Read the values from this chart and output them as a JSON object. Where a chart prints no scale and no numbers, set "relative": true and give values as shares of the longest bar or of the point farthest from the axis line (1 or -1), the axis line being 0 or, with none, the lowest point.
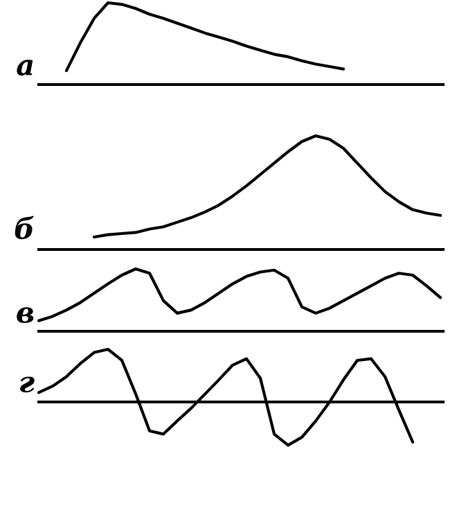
{
  "chart_data": [
    {
      "type": "line",
      "relative": true,
      "title": "а",
      "color": "#000000",
      "categories": [
        null,
        null,
        null,
        null,
        null,
        null,
        null,
        null,
        null,
        null,
        null,
        null,
        null,
        null,
        null,
        null,
        null,
        null,
        null,
        null,
        null
      ],
      "values": [
        0.17,
        0.51,
        0.81,
        1.0,
        0.98,
        0.93,
        0.86,
        0.81,
        0.75,
        0.69,
        0.63,
        0.58,
        0.53,
        0.47,
        0.42,
        0.37,
        0.34,
        0.29,
        0.25,
        0.22,
        0.19
      ]
    },
    {
      "type": "line",
      "relative": true,
      "title": "б",
      "color": "#000000",
      "categories": [
        null,
        null,
        null,
        null,
        null,
        null,
        null,
        null,
        null,
        null,
        null,
        null,
        null,
        null,
        null,
        null,
        null,
        null,
        null,
        null,
        null,
        null,
        null,
        null,
        null,
        null
      ],
      "values": [
        0.11,
        0.13,
        0.14,
        0.15,
        0.18,
        0.2,
        0.24,
        0.28,
        0.33,
        0.39,
        0.47,
        0.56,
        0.66,
        0.76,
        0.86,
        0.95,
        1.0,
        0.97,
        0.89,
        0.76,
        0.63,
        0.51,
        0.42,
        0.35,
        0.32,
        0.3
      ]
    },
    {
      "type": "line",
      "relative": true,
      "title": "в",
      "color": "#000000",
      "categories": [
        null,
        null,
        null,
        null,
        null,
        null,
        null,
        null,
        null,
        null,
        null,
        null,
        null,
        null,
        null,
        null,
        null,
        null,
        null,
        null,
        null,
        null,
        null,
        null,
        null,
        null,
        null,
        null,
        null,
        null
      ],
      "values": [
        0.17,
        0.24,
        0.34,
        0.46,
        0.61,
        0.76,
        0.9,
        1.0,
        0.93,
        0.49,
        0.29,
        0.34,
        0.46,
        0.61,
        0.76,
        0.88,
        0.95,
        0.98,
        0.85,
        0.39,
        0.29,
        0.37,
        0.49,
        0.61,
        0.73,
        0.85,
        0.93,
        0.9,
        0.73,
        0.54
      ]
    },
    {
      "type": "line",
      "relative": true,
      "title": "г",
      "color": "#000000",
      "categories": [
        null,
        null,
        null,
        null,
        null,
        null,
        null,
        null,
        null,
        null,
        null,
        null,
        null,
        null,
        null,
        null,
        null,
        null,
        null,
        null,
        null,
        null,
        null,
        null,
        null,
        null,
        null,
        null
      ],
      "values": [
        0.18,
        0.3,
        0.48,
        0.73,
        0.94,
        1.0,
        0.79,
        0.15,
        -0.55,
        -0.61,
        -0.36,
        -0.12,
        0.15,
        0.42,
        0.7,
        0.82,
        0.45,
        -0.61,
        -0.82,
        -0.67,
        -0.36,
        0.0,
        0.42,
        0.79,
        0.82,
        0.48,
        -0.15,
        -0.76
      ]
    }
  ]
}
